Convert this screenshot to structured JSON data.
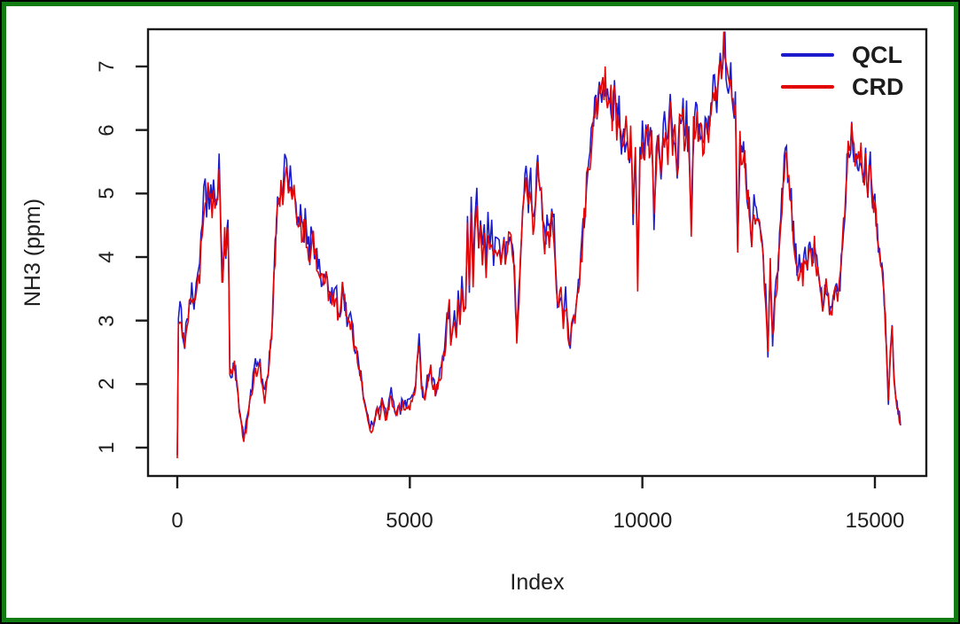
{
  "frame": {
    "outline_color": "#000000",
    "border_color": "#117c11",
    "background": "#ffffff"
  },
  "chart_data": {
    "type": "line",
    "title": "",
    "xlabel": "Index",
    "ylabel": "NH3 (ppm)",
    "xlim": [
      -650,
      16100
    ],
    "ylim": [
      0.55,
      7.6
    ],
    "x_ticks": [
      0,
      5000,
      10000,
      15000
    ],
    "x_tick_labels": [
      "0",
      "5000",
      "10000",
      "15000"
    ],
    "y_ticks": [
      1,
      2,
      3,
      4,
      5,
      6,
      7
    ],
    "y_tick_labels": [
      "1",
      "2",
      "3",
      "4",
      "5",
      "6",
      "7"
    ],
    "grid": false,
    "legend_position": "top-right",
    "axis_color": "#1a1a1a",
    "series": [
      {
        "name": "QCL",
        "color": "#1c1ccd",
        "offset": 0.06,
        "noise_scale": 1.1
      },
      {
        "name": "CRD",
        "color": "#e30505",
        "offset": 0.0,
        "noise_scale": 0.95
      }
    ],
    "noise": {
      "base": 0.07,
      "per_unit": 0.045,
      "max": 0.3,
      "seed": 1234,
      "step": 30
    },
    "anchors": [
      [
        0,
        0.88
      ],
      [
        25,
        2.9
      ],
      [
        60,
        3.1
      ],
      [
        110,
        2.85
      ],
      [
        160,
        2.6
      ],
      [
        210,
        3.0
      ],
      [
        260,
        3.2
      ],
      [
        310,
        3.35
      ],
      [
        360,
        3.2
      ],
      [
        410,
        3.55
      ],
      [
        450,
        3.9
      ],
      [
        480,
        3.65
      ],
      [
        510,
        4.15
      ],
      [
        540,
        4.45
      ],
      [
        570,
        4.8
      ],
      [
        600,
        4.95
      ],
      [
        630,
        4.7
      ],
      [
        660,
        5.0
      ],
      [
        690,
        4.85
      ],
      [
        720,
        5.05
      ],
      [
        750,
        4.8
      ],
      [
        780,
        4.95
      ],
      [
        810,
        4.6
      ],
      [
        840,
        4.85
      ],
      [
        870,
        5.1
      ],
      [
        900,
        5.55
      ],
      [
        920,
        5.0
      ],
      [
        940,
        4.25
      ],
      [
        960,
        3.75
      ],
      [
        980,
        3.6
      ],
      [
        1000,
        4.05
      ],
      [
        1020,
        4.3
      ],
      [
        1045,
        3.85
      ],
      [
        1070,
        4.2
      ],
      [
        1090,
        4.3
      ],
      [
        1110,
        3.5
      ],
      [
        1130,
        2.2
      ],
      [
        1180,
        2.1
      ],
      [
        1230,
        2.3
      ],
      [
        1280,
        2.0
      ],
      [
        1330,
        1.55
      ],
      [
        1380,
        1.35
      ],
      [
        1430,
        1.1
      ],
      [
        1480,
        1.3
      ],
      [
        1530,
        1.6
      ],
      [
        1580,
        1.8
      ],
      [
        1630,
        2.0
      ],
      [
        1680,
        2.3
      ],
      [
        1730,
        2.15
      ],
      [
        1780,
        2.25
      ],
      [
        1830,
        1.95
      ],
      [
        1880,
        1.75
      ],
      [
        1930,
        2.0
      ],
      [
        1980,
        2.4
      ],
      [
        2030,
        2.8
      ],
      [
        2080,
        3.6
      ],
      [
        2130,
        4.4
      ],
      [
        2180,
        4.9
      ],
      [
        2230,
        5.1
      ],
      [
        2270,
        4.85
      ],
      [
        2310,
        5.3
      ],
      [
        2350,
        5.45
      ],
      [
        2390,
        5.0
      ],
      [
        2430,
        5.25
      ],
      [
        2470,
        4.8
      ],
      [
        2510,
        5.1
      ],
      [
        2550,
        4.6
      ],
      [
        2600,
        4.35
      ],
      [
        2650,
        4.6
      ],
      [
        2700,
        4.3
      ],
      [
        2750,
        4.5
      ],
      [
        2800,
        4.15
      ],
      [
        2850,
        4.0
      ],
      [
        2900,
        4.45
      ],
      [
        2950,
        4.1
      ],
      [
        3000,
        3.95
      ],
      [
        3050,
        3.8
      ],
      [
        3100,
        3.65
      ],
      [
        3150,
        3.5
      ],
      [
        3200,
        3.75
      ],
      [
        3250,
        3.4
      ],
      [
        3300,
        3.35
      ],
      [
        3350,
        3.3
      ],
      [
        3400,
        3.45
      ],
      [
        3450,
        3.15
      ],
      [
        3500,
        3.0
      ],
      [
        3550,
        3.45
      ],
      [
        3600,
        3.25
      ],
      [
        3650,
        2.95
      ],
      [
        3700,
        3.1
      ],
      [
        3750,
        2.85
      ],
      [
        3800,
        2.6
      ],
      [
        3850,
        2.5
      ],
      [
        3900,
        2.3
      ],
      [
        3950,
        2.1
      ],
      [
        4000,
        1.8
      ],
      [
        4050,
        1.55
      ],
      [
        4100,
        1.4
      ],
      [
        4150,
        1.3
      ],
      [
        4200,
        1.25
      ],
      [
        4250,
        1.45
      ],
      [
        4300,
        1.65
      ],
      [
        4350,
        1.5
      ],
      [
        4400,
        1.7
      ],
      [
        4450,
        1.55
      ],
      [
        4500,
        1.45
      ],
      [
        4550,
        1.65
      ],
      [
        4600,
        1.8
      ],
      [
        4650,
        1.6
      ],
      [
        4700,
        1.5
      ],
      [
        4750,
        1.65
      ],
      [
        4800,
        1.55
      ],
      [
        4850,
        1.7
      ],
      [
        4900,
        1.6
      ],
      [
        4950,
        1.7
      ],
      [
        5000,
        1.65
      ],
      [
        5050,
        1.75
      ],
      [
        5100,
        1.85
      ],
      [
        5150,
        2.2
      ],
      [
        5200,
        2.6
      ],
      [
        5250,
        1.95
      ],
      [
        5300,
        1.75
      ],
      [
        5350,
        1.9
      ],
      [
        5400,
        2.1
      ],
      [
        5450,
        2.2
      ],
      [
        5500,
        1.95
      ],
      [
        5550,
        1.85
      ],
      [
        5600,
        2.0
      ],
      [
        5650,
        2.1
      ],
      [
        5700,
        2.3
      ],
      [
        5750,
        2.5
      ],
      [
        5800,
        2.9
      ],
      [
        5850,
        3.2
      ],
      [
        5880,
        2.6
      ],
      [
        5920,
        2.75
      ],
      [
        5960,
        3.1
      ],
      [
        6000,
        2.8
      ],
      [
        6040,
        3.3
      ],
      [
        6080,
        2.95
      ],
      [
        6120,
        3.45
      ],
      [
        6160,
        3.1
      ],
      [
        6200,
        3.3
      ],
      [
        6240,
        4.35
      ],
      [
        6280,
        3.45
      ],
      [
        6320,
        4.75
      ],
      [
        6360,
        3.6
      ],
      [
        6400,
        4.3
      ],
      [
        6440,
        4.85
      ],
      [
        6480,
        4.25
      ],
      [
        6520,
        4.6
      ],
      [
        6560,
        4.05
      ],
      [
        6600,
        4.35
      ],
      [
        6640,
        3.85
      ],
      [
        6680,
        4.45
      ],
      [
        6720,
        4.15
      ],
      [
        6760,
        4.3
      ],
      [
        6800,
        3.95
      ],
      [
        6840,
        4.25
      ],
      [
        6880,
        4.1
      ],
      [
        6920,
        4.3
      ],
      [
        6960,
        4.05
      ],
      [
        7000,
        4.25
      ],
      [
        7050,
        3.95
      ],
      [
        7100,
        4.2
      ],
      [
        7150,
        4.35
      ],
      [
        7200,
        4.0
      ],
      [
        7250,
        3.7
      ],
      [
        7300,
        2.65
      ],
      [
        7350,
        3.4
      ],
      [
        7400,
        4.3
      ],
      [
        7450,
        4.9
      ],
      [
        7500,
        5.45
      ],
      [
        7550,
        4.85
      ],
      [
        7600,
        5.15
      ],
      [
        7650,
        4.45
      ],
      [
        7700,
        4.8
      ],
      [
        7750,
        5.55
      ],
      [
        7800,
        5.25
      ],
      [
        7850,
        4.55
      ],
      [
        7900,
        4.2
      ],
      [
        7950,
        4.55
      ],
      [
        8000,
        4.25
      ],
      [
        8050,
        4.65
      ],
      [
        8100,
        4.4
      ],
      [
        8150,
        3.5
      ],
      [
        8200,
        3.15
      ],
      [
        8250,
        3.45
      ],
      [
        8300,
        2.95
      ],
      [
        8350,
        3.3
      ],
      [
        8400,
        2.8
      ],
      [
        8450,
        2.65
      ],
      [
        8500,
        3.05
      ],
      [
        8550,
        2.95
      ],
      [
        8600,
        3.35
      ],
      [
        8650,
        3.7
      ],
      [
        8700,
        4.1
      ],
      [
        8750,
        4.6
      ],
      [
        8800,
        5.1
      ],
      [
        8850,
        5.4
      ],
      [
        8900,
        5.75
      ],
      [
        8950,
        6.05
      ],
      [
        9000,
        6.25
      ],
      [
        9050,
        6.5
      ],
      [
        9100,
        6.35
      ],
      [
        9150,
        6.7
      ],
      [
        9200,
        6.8
      ],
      [
        9250,
        6.5
      ],
      [
        9300,
        6.65
      ],
      [
        9350,
        6.25
      ],
      [
        9400,
        6.45
      ],
      [
        9450,
        6.05
      ],
      [
        9500,
        6.25
      ],
      [
        9550,
        5.85
      ],
      [
        9600,
        5.7
      ],
      [
        9650,
        5.95
      ],
      [
        9700,
        5.6
      ],
      [
        9750,
        5.85
      ],
      [
        9800,
        4.65
      ],
      [
        9850,
        5.75
      ],
      [
        9900,
        3.55
      ],
      [
        9950,
        5.5
      ],
      [
        10000,
        5.8
      ],
      [
        10050,
        5.6
      ],
      [
        10100,
        5.95
      ],
      [
        10150,
        5.7
      ],
      [
        10200,
        5.85
      ],
      [
        10250,
        4.55
      ],
      [
        10300,
        5.6
      ],
      [
        10350,
        5.8
      ],
      [
        10400,
        5.45
      ],
      [
        10450,
        5.9
      ],
      [
        10500,
        6.05
      ],
      [
        10550,
        5.6
      ],
      [
        10600,
        6.25
      ],
      [
        10650,
        5.8
      ],
      [
        10700,
        6.0
      ],
      [
        10750,
        5.05
      ],
      [
        10800,
        6.15
      ],
      [
        10850,
        6.35
      ],
      [
        10900,
        5.9
      ],
      [
        10950,
        6.1
      ],
      [
        11000,
        5.7
      ],
      [
        11050,
        4.3
      ],
      [
        11100,
        5.95
      ],
      [
        11150,
        6.25
      ],
      [
        11200,
        5.85
      ],
      [
        11250,
        6.1
      ],
      [
        11300,
        5.7
      ],
      [
        11350,
        6.05
      ],
      [
        11400,
        5.8
      ],
      [
        11450,
        6.15
      ],
      [
        11500,
        6.4
      ],
      [
        11550,
        6.65
      ],
      [
        11600,
        6.45
      ],
      [
        11650,
        6.85
      ],
      [
        11700,
        7.05
      ],
      [
        11750,
        7.38
      ],
      [
        11800,
        6.95
      ],
      [
        11850,
        6.7
      ],
      [
        11900,
        6.85
      ],
      [
        11950,
        6.55
      ],
      [
        12000,
        6.25
      ],
      [
        12050,
        4.15
      ],
      [
        12100,
        5.85
      ],
      [
        12150,
        5.35
      ],
      [
        12200,
        5.6
      ],
      [
        12250,
        5.05
      ],
      [
        12300,
        4.75
      ],
      [
        12350,
        4.05
      ],
      [
        12400,
        4.85
      ],
      [
        12450,
        4.55
      ],
      [
        12500,
        4.7
      ],
      [
        12550,
        4.25
      ],
      [
        12600,
        3.9
      ],
      [
        12650,
        3.35
      ],
      [
        12700,
        2.5
      ],
      [
        12750,
        3.85
      ],
      [
        12800,
        2.65
      ],
      [
        12850,
        3.3
      ],
      [
        12900,
        3.6
      ],
      [
        12950,
        4.3
      ],
      [
        13000,
        4.9
      ],
      [
        13050,
        5.4
      ],
      [
        13100,
        5.65
      ],
      [
        13150,
        5.15
      ],
      [
        13200,
        4.85
      ],
      [
        13250,
        4.35
      ],
      [
        13300,
        4.0
      ],
      [
        13350,
        3.65
      ],
      [
        13400,
        3.95
      ],
      [
        13450,
        3.7
      ],
      [
        13500,
        4.0
      ],
      [
        13550,
        3.85
      ],
      [
        13600,
        4.1
      ],
      [
        13650,
        3.9
      ],
      [
        13700,
        4.15
      ],
      [
        13750,
        3.8
      ],
      [
        13800,
        3.55
      ],
      [
        13850,
        3.3
      ],
      [
        13900,
        3.15
      ],
      [
        13950,
        3.5
      ],
      [
        14000,
        3.2
      ],
      [
        14050,
        3.0
      ],
      [
        14100,
        3.35
      ],
      [
        14150,
        3.55
      ],
      [
        14200,
        3.3
      ],
      [
        14250,
        3.6
      ],
      [
        14300,
        4.1
      ],
      [
        14350,
        4.7
      ],
      [
        14400,
        5.35
      ],
      [
        14450,
        5.8
      ],
      [
        14500,
        5.95
      ],
      [
        14550,
        5.55
      ],
      [
        14600,
        5.8
      ],
      [
        14650,
        5.45
      ],
      [
        14700,
        5.65
      ],
      [
        14750,
        5.25
      ],
      [
        14800,
        5.5
      ],
      [
        14850,
        5.15
      ],
      [
        14900,
        5.4
      ],
      [
        14950,
        4.95
      ],
      [
        15000,
        4.8
      ],
      [
        15050,
        4.35
      ],
      [
        15100,
        4.05
      ],
      [
        15150,
        3.9
      ],
      [
        15200,
        3.3
      ],
      [
        15250,
        2.55
      ],
      [
        15290,
        1.65
      ],
      [
        15330,
        2.45
      ],
      [
        15370,
        2.8
      ],
      [
        15410,
        2.15
      ],
      [
        15450,
        1.8
      ],
      [
        15500,
        1.55
      ],
      [
        15550,
        1.35
      ]
    ]
  }
}
